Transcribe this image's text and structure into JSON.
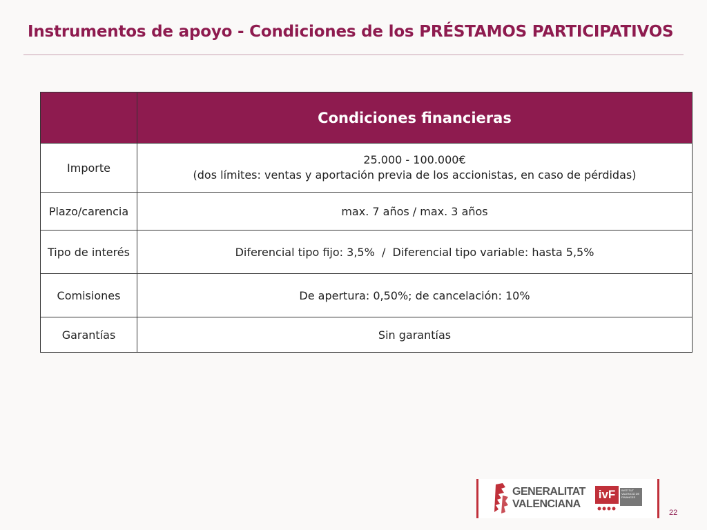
{
  "slide": {
    "title": "Instrumentos de apoyo - Condiciones de los PRÉSTAMOS PARTICIPATIVOS",
    "page_number": "22"
  },
  "table": {
    "header": {
      "col1": "",
      "col2": "Condiciones financieras"
    },
    "rows": [
      {
        "label": "Importe",
        "value_line1": "25.000 - 100.000€",
        "value_line2": "(dos límites: ventas y aportación previa de los accionistas, en caso de pérdidas)"
      },
      {
        "label": "Plazo/carencia",
        "value": "max. 7 años / max. 3 años"
      },
      {
        "label": "Tipo de interés",
        "value": "Diferencial tipo fijo: 3,5%  /  Diferencial tipo variable: hasta 5,5%"
      },
      {
        "label": "Comisiones",
        "value": "De apertura: 0,50%; de cancelación: 10%"
      },
      {
        "label": "Garantías",
        "value": "Sin garantías"
      }
    ]
  },
  "logos": {
    "generalitat_line1": "GENERALITAT",
    "generalitat_line2": "VALENCIANA",
    "ivf_mark": "ivF",
    "ivf_text": "INSTITUT VALENCIÀ DE FINANCES"
  },
  "colors": {
    "accent": "#8e1b4f",
    "logo_red": "#c0303a"
  }
}
